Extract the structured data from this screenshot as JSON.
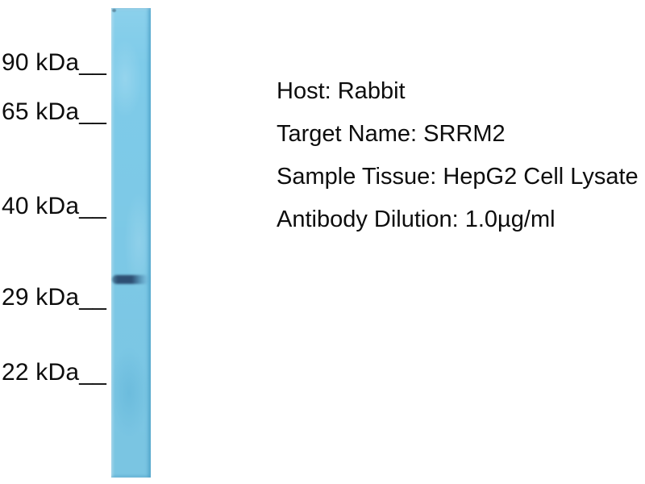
{
  "blot": {
    "markers": [
      {
        "label": "90 kDa__"
      },
      {
        "label": "65 kDa__"
      },
      {
        "label": "40 kDa__"
      },
      {
        "label": "29 kDa__"
      },
      {
        "label": "22 kDa__"
      }
    ],
    "band": {
      "description": "single dark band just above the 29 kDa marker"
    },
    "colors": {
      "lane": "#7ecbe9",
      "lane_edge": "#4fadd8",
      "band": "#2e4f73",
      "background": "#ffffff",
      "text": "#0d0d0d"
    }
  },
  "info": {
    "lines": [
      "Host: Rabbit",
      "Target Name: SRRM2",
      "Sample Tissue: HepG2 Cell Lysate",
      "Antibody Dilution: 1.0µg/ml"
    ]
  }
}
